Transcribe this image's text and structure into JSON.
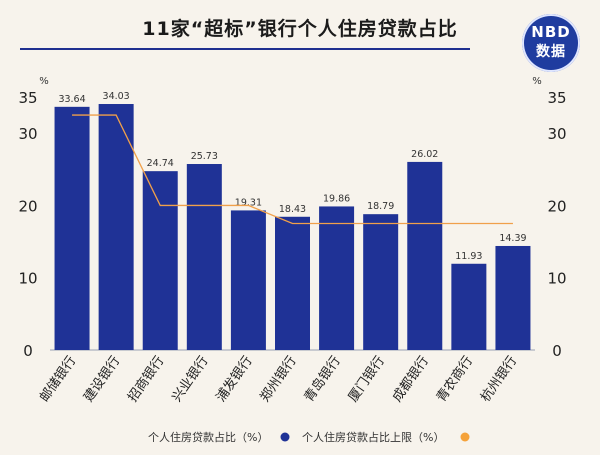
{
  "title": "11家“超标”银行个人住房贷款占比",
  "logo": {
    "line1": "NBD",
    "line2": "数据"
  },
  "colors": {
    "bar": "#1f3296",
    "limit_line": "#f0a04a",
    "limit_marker": "#f5a23a"
  },
  "chart_data": {
    "type": "bar",
    "title": "11家“超标”银行个人住房贷款占比",
    "unit_left": "%",
    "unit_right": "%",
    "ylim": [
      0,
      35
    ],
    "yticks": [
      0,
      10,
      20,
      30,
      35
    ],
    "categories": [
      "邮储银行",
      "建设银行",
      "招商银行",
      "兴业银行",
      "浦发银行",
      "郑州银行",
      "青岛银行",
      "厦门银行",
      "成都银行",
      "青农商行",
      "杭州银行"
    ],
    "series": [
      {
        "name": "个人住房贷款占比（%）",
        "type": "bar",
        "values": [
          33.64,
          34.03,
          24.74,
          25.73,
          19.31,
          18.43,
          19.86,
          18.79,
          26.02,
          11.93,
          14.39
        ],
        "labels": [
          "33.64",
          "34.03",
          "24.74",
          "25.73",
          "19.31",
          "18.43",
          "19.86",
          "18.79",
          "26.02",
          "11.93",
          "14.39"
        ]
      },
      {
        "name": "个人住房贷款占比上限（%）",
        "type": "line",
        "values": [
          32.5,
          32.5,
          20,
          20,
          20,
          17.5,
          17.5,
          17.5,
          17.5,
          17.5,
          17.5
        ]
      }
    ],
    "legend": "bottom"
  }
}
